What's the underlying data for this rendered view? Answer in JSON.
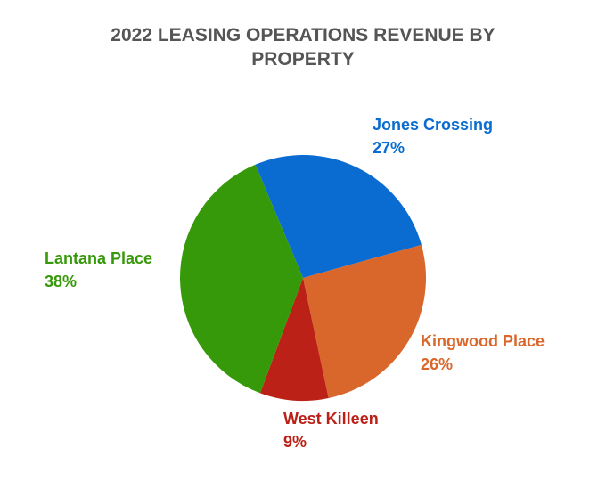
{
  "chart_data": {
    "type": "pie",
    "title": "2022 LEASING OPERATIONS REVENUE BY PROPERTY",
    "categories": [
      "Jones Crossing",
      "Kingwood Place",
      "West Killeen",
      "Lantana Place"
    ],
    "values": [
      27,
      26,
      9,
      38
    ],
    "value_labels": [
      "27%",
      "26%",
      "9%",
      "38%"
    ],
    "colors": [
      "#0a6bd0",
      "#d9672b",
      "#bb2116",
      "#36990a"
    ]
  }
}
